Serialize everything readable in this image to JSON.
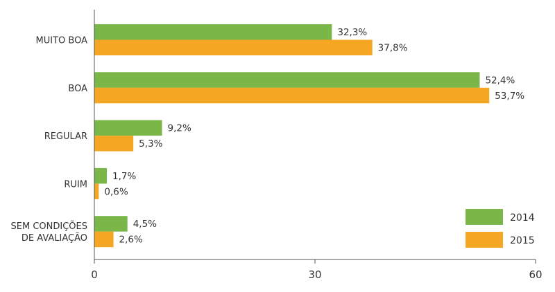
{
  "chart_data": {
    "type": "bar",
    "orientation": "horizontal",
    "categories": [
      [
        "MUITO BOA"
      ],
      [
        "BOA"
      ],
      [
        "REGULAR"
      ],
      [
        "RUIM"
      ],
      [
        "SEM CONDIÇÕES",
        "DE AVALIAÇÃO"
      ]
    ],
    "series": [
      {
        "name": "2014",
        "color": "#7ab648",
        "values": [
          32.3,
          52.4,
          9.2,
          1.7,
          4.5
        ],
        "labels": [
          "32,3%",
          "52,4%",
          "9,2%",
          "1,7%",
          "4,5%"
        ]
      },
      {
        "name": "2015",
        "color": "#f5a623",
        "values": [
          37.8,
          53.7,
          5.3,
          0.6,
          2.6
        ],
        "labels": [
          "37,8%",
          "53,7%",
          "5,3%",
          "0,6%",
          "2,6%"
        ]
      }
    ],
    "xlim": [
      0,
      60
    ],
    "xticks": [
      0,
      30,
      60
    ],
    "xtick_labels": [
      "0",
      "30",
      "60"
    ],
    "title": "",
    "xlabel": "",
    "ylabel": "",
    "grid": false,
    "legend_position": "bottom-right"
  }
}
